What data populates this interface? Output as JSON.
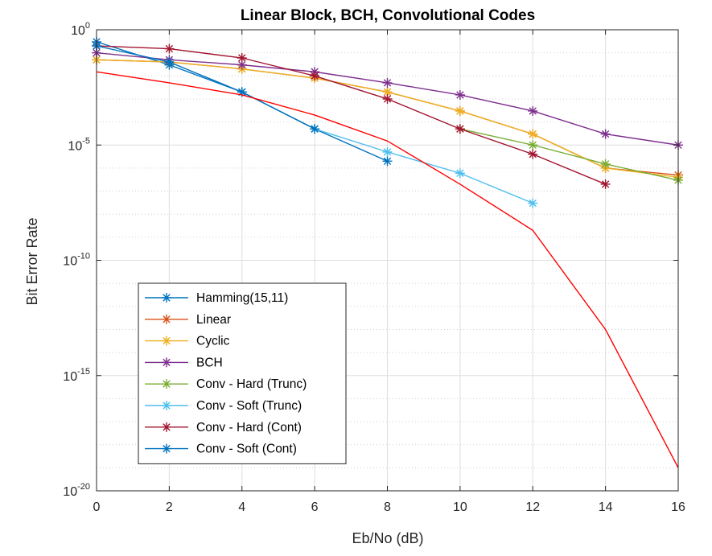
{
  "chart_data": {
    "type": "line",
    "title": "Linear Block, BCH, Convolutional Codes",
    "xlabel": "Eb/No (dB)",
    "ylabel": "Bit Error Rate",
    "xlim": [
      0,
      16
    ],
    "ylim": [
      1e-20,
      1
    ],
    "yscale": "log",
    "grid": true,
    "legend_position": "bottom-left",
    "x_ticks": [
      "0",
      "2",
      "4",
      "6",
      "8",
      "10",
      "12",
      "14",
      "16"
    ],
    "y_ticks": [
      {
        "base": "10",
        "exp": "0",
        "value": 1
      },
      {
        "base": "10",
        "exp": "-5",
        "value": 1e-05
      },
      {
        "base": "10",
        "exp": "-10",
        "value": 1e-10
      },
      {
        "base": "10",
        "exp": "-15",
        "value": 1e-15
      },
      {
        "base": "10",
        "exp": "-20",
        "value": 1e-20
      }
    ],
    "series": [
      {
        "name": "Hamming(15,11)",
        "color": "#0072BD",
        "marker": "*",
        "x": [
          0,
          2,
          4,
          6,
          8
        ],
        "y": [
          0.3,
          0.03,
          0.002,
          5e-05,
          2e-06
        ]
      },
      {
        "name": "Linear",
        "color": "#D95319",
        "marker": "*",
        "x": [
          0,
          2,
          4,
          6,
          8,
          10,
          12,
          14,
          16
        ],
        "y": [
          0.05,
          0.04,
          0.02,
          0.008,
          0.002,
          0.0003,
          3e-05,
          1e-06,
          5e-07
        ]
      },
      {
        "name": "Cyclic",
        "color": "#EDB120",
        "marker": "*",
        "x": [
          0,
          2,
          4,
          6,
          8,
          10,
          12,
          14,
          16
        ],
        "y": [
          0.05,
          0.04,
          0.02,
          0.008,
          0.002,
          0.0003,
          3e-05,
          1e-06,
          4e-07
        ]
      },
      {
        "name": "BCH",
        "color": "#7E2F8E",
        "marker": "*",
        "x": [
          0,
          2,
          4,
          6,
          8,
          10,
          12,
          14,
          16
        ],
        "y": [
          0.1,
          0.05,
          0.03,
          0.015,
          0.005,
          0.0015,
          0.0003,
          3e-05,
          1e-05
        ]
      },
      {
        "name": "Conv - Hard (Trunc)",
        "color": "#77AC30",
        "marker": "*",
        "x": [
          10,
          12,
          14,
          16
        ],
        "y": [
          5e-05,
          1e-05,
          1.5e-06,
          3e-07
        ]
      },
      {
        "name": "Conv - Soft (Trunc)",
        "color": "#4DBEEE",
        "marker": "*",
        "x": [
          6,
          8,
          10,
          12
        ],
        "y": [
          5e-05,
          5e-06,
          6e-07,
          3e-08
        ]
      },
      {
        "name": "Conv - Hard (Cont)",
        "color": "#A2142F",
        "marker": "*",
        "x": [
          0,
          2,
          4,
          6,
          8,
          10,
          12,
          14
        ],
        "y": [
          0.2,
          0.15,
          0.06,
          0.01,
          0.001,
          5e-05,
          4e-06,
          2e-07
        ]
      },
      {
        "name": "Conv - Soft (Cont)",
        "color": "#0072BD",
        "marker": "*",
        "x": [
          0,
          2,
          4,
          6
        ],
        "y": [
          0.2,
          0.04,
          0.002,
          5e-05
        ]
      },
      {
        "name": "",
        "color": "#FF0000",
        "marker": "none",
        "x": [
          0,
          2,
          4,
          6,
          8,
          10,
          12,
          14,
          16
        ],
        "y": [
          0.015,
          0.005,
          0.0015,
          0.0002,
          1.5e-05,
          2e-07,
          2e-09,
          1e-13,
          1e-19
        ]
      }
    ]
  }
}
